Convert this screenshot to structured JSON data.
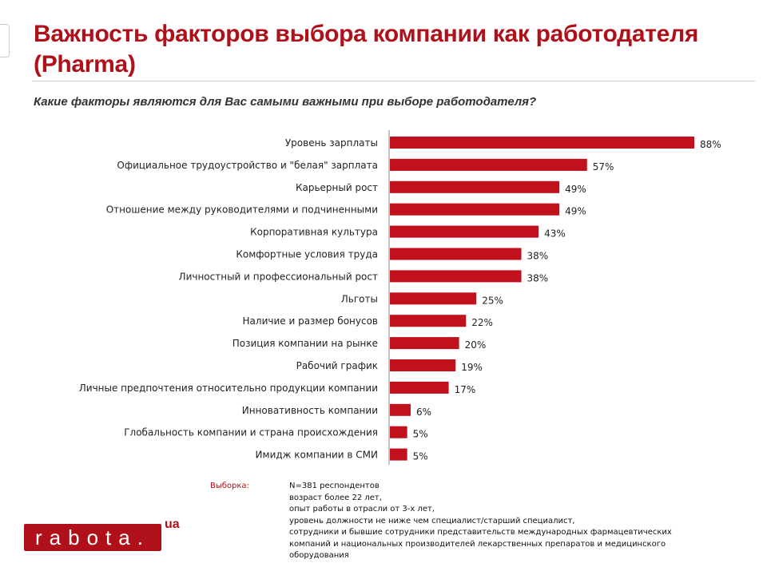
{
  "title": "Важность факторов выбора компании как работодателя (Pharma)",
  "subtitle": "Какие факторы являются для Вас самыми важными при выборе работодателя?",
  "chart_data": {
    "type": "bar",
    "orientation": "horizontal",
    "categories": [
      "Уровень зарплаты",
      "Официальное трудоустройство и \"белая\" зарплата",
      "Карьерный рост",
      "Отношение между руководителями и подчиненными",
      "Корпоративная культура",
      "Комфортные условия труда",
      "Личностный и профессиональный рост",
      "Льготы",
      "Наличие и размер бонусов",
      "Позиция компании на рынке",
      "Рабочий график",
      "Личные предпочтения относительно продукции компании",
      "Инновативность компании",
      "Глобальность компании и страна происхождения",
      "Имидж компании в СМИ"
    ],
    "values": [
      88,
      57,
      49,
      49,
      43,
      38,
      38,
      25,
      22,
      20,
      19,
      17,
      6,
      5,
      5
    ],
    "value_labels": [
      "88%",
      "57%",
      "49%",
      "49%",
      "43%",
      "38%",
      "38%",
      "25%",
      "22%",
      "20%",
      "19%",
      "17%",
      "6%",
      "5%",
      "5%"
    ],
    "xlim": [
      0,
      100
    ],
    "grid": false,
    "bar_color": "#c0111d"
  },
  "sample": {
    "label": "Выборка:",
    "lines": [
      "N=381 респондентов",
      "возраст более 22 лет,",
      "опыт работы в отрасли от 3-х лет,",
      "уровень должности не ниже чем специалист/старший  специалист,",
      "сотрудники и бывшие сотрудники представительств международных фармацевтических",
      "компаний и национальных производителей лекарственных препаратов и медицинского",
      "оборудования"
    ]
  },
  "logo": {
    "text": "rabota.",
    "suffix": "ua"
  }
}
